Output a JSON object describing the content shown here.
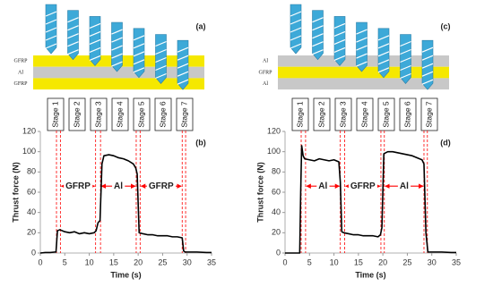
{
  "chart_data": [
    {
      "type": "line",
      "schematic_label": "(a)",
      "label": "(b)",
      "layers": [
        "GFRP",
        "Al",
        "GFRP"
      ],
      "layer_colors": {
        "GFRP": "#f5e800",
        "Al": "#c8c8c8"
      },
      "drill_color": "#3da9d8",
      "stages": [
        "Stage 1",
        "Stage 2",
        "Stage 3",
        "Stage 4",
        "Stage 5",
        "Stage 6",
        "Stage 7"
      ],
      "xlabel": "Time (s)",
      "ylabel": "Thrust force  (N)",
      "xlim": [
        0,
        35
      ],
      "xticks": [
        0,
        5,
        10,
        15,
        20,
        25,
        30,
        35
      ],
      "ylim": [
        0,
        120
      ],
      "yticks": [
        0,
        20,
        40,
        60,
        80,
        100,
        120
      ],
      "color": "#000000",
      "x": [
        0,
        1,
        2,
        3,
        3.2,
        3.5,
        4,
        5,
        6,
        7,
        8,
        9,
        10,
        11,
        11.4,
        11.8,
        12.2,
        12.6,
        13,
        14,
        15,
        16,
        17,
        18,
        19,
        19.5,
        19.8,
        20.2,
        21,
        22,
        23,
        24,
        25,
        26,
        27,
        28,
        29,
        29.3,
        29.6,
        30,
        32,
        34,
        35
      ],
      "values": [
        0,
        0.5,
        0.5,
        1,
        1,
        22,
        23,
        21,
        20,
        21,
        19,
        20,
        19,
        20,
        22,
        30,
        32,
        88,
        96,
        97,
        96,
        94,
        93,
        91,
        88,
        84,
        78,
        20,
        19,
        18,
        18,
        17,
        17,
        17,
        16,
        16,
        15,
        2,
        1,
        1,
        1,
        0.5,
        0.5
      ],
      "markers": [
        3.3,
        4.1,
        11.3,
        12.3,
        19.6,
        20.4,
        29.0,
        29.7
      ],
      "marker_color": "#ff0000",
      "regions": [
        {
          "label": "GFRP",
          "x": [
            4.1,
            11.3
          ]
        },
        {
          "label": "Al",
          "x": [
            12.3,
            19.6
          ]
        },
        {
          "label": "GFRP",
          "x": [
            20.4,
            29.0
          ]
        }
      ]
    },
    {
      "type": "line",
      "schematic_label": "(c)",
      "label": "(d)",
      "layers": [
        "Al",
        "GFRP",
        "Al"
      ],
      "layer_colors": {
        "GFRP": "#f5e800",
        "Al": "#c8c8c8"
      },
      "drill_color": "#3da9d8",
      "stages": [
        "Stage 1",
        "Stage 2",
        "Stage 3",
        "Stage 4",
        "Stage 5",
        "Stage 6",
        "Stage 7"
      ],
      "xlabel": "Time (s)",
      "ylabel": "Thrust force  (N)",
      "xlim": [
        0,
        35
      ],
      "xticks": [
        0,
        5,
        10,
        15,
        20,
        25,
        30,
        35
      ],
      "ylim": [
        0,
        120
      ],
      "yticks": [
        0,
        20,
        40,
        60,
        80,
        100,
        120
      ],
      "color": "#000000",
      "x": [
        0,
        1,
        2,
        3,
        3.2,
        3.4,
        3.7,
        4,
        5,
        6,
        7,
        8,
        9,
        10,
        11,
        11.3,
        11.6,
        12,
        13,
        14,
        15,
        16,
        17,
        18,
        19,
        19.5,
        19.8,
        20.2,
        21,
        22,
        23,
        24,
        25,
        26,
        27,
        28,
        28.4,
        28.8,
        29.2,
        30,
        32,
        34,
        35
      ],
      "values": [
        0,
        0,
        0,
        0,
        60,
        106,
        96,
        93,
        92,
        91,
        93,
        92,
        91,
        92,
        90,
        70,
        21,
        20,
        19,
        18,
        18,
        17,
        17,
        17,
        16,
        18,
        25,
        98,
        100,
        100,
        99,
        98,
        97,
        96,
        94,
        92,
        88,
        20,
        1,
        1,
        1,
        0.5,
        0.5
      ],
      "markers": [
        3.3,
        4.2,
        11.3,
        12.2,
        19.6,
        20.3,
        28.4,
        29.1
      ],
      "marker_color": "#ff0000",
      "regions": [
        {
          "label": "Al",
          "x": [
            4.2,
            11.3
          ]
        },
        {
          "label": "GFRP",
          "x": [
            12.2,
            19.6
          ]
        },
        {
          "label": "Al",
          "x": [
            20.3,
            28.4
          ]
        }
      ]
    }
  ]
}
